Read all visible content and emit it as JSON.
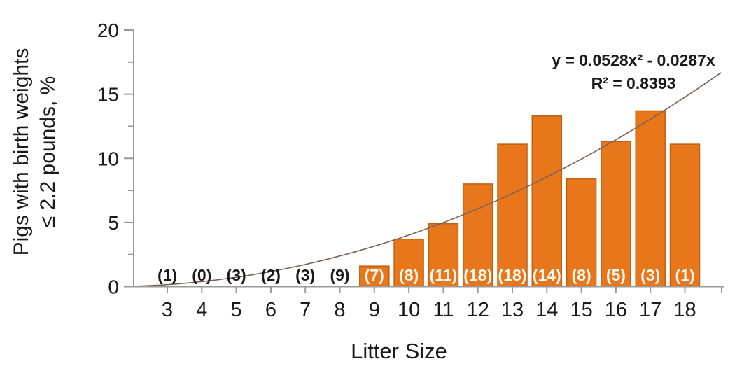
{
  "chart_data": {
    "type": "bar",
    "title": "",
    "xlabel": "Litter Size",
    "ylabel_line1": "Pigs with birth weights",
    "ylabel_line2": "≤ 2.2 pounds, %",
    "categories": [
      3,
      4,
      5,
      6,
      7,
      8,
      9,
      10,
      11,
      12,
      13,
      14,
      15,
      16,
      17,
      18
    ],
    "values": [
      0,
      0,
      0,
      0,
      0,
      0,
      1.6,
      3.7,
      4.9,
      8.0,
      11.1,
      13.3,
      8.4,
      11.3,
      13.7,
      11.1
    ],
    "counts": [
      1,
      0,
      3,
      2,
      3,
      9,
      7,
      8,
      11,
      18,
      18,
      14,
      8,
      5,
      3,
      1
    ],
    "count_labels": [
      "(1)",
      "(0)",
      "(3)",
      "(2)",
      "(3)",
      "(9)",
      "(7)",
      "(8)",
      "(11)",
      "(18)",
      "(18)",
      "(14)",
      "(8)",
      "(5)",
      "(3)",
      "(1)"
    ],
    "ylim": [
      0,
      20
    ],
    "yticks": [
      0,
      5,
      10,
      15,
      20
    ],
    "yticks_minor": [
      2.5,
      7.5,
      12.5,
      17.5
    ],
    "grid": false,
    "legend": "none",
    "trendline": {
      "equation_label": "y = 0.0528x² - 0.0287x",
      "r2_label": "R² = 0.8393",
      "a": 0.0528,
      "b": -0.0287,
      "fit_x_offset": -1,
      "draw_domain": [
        2.05,
        19.05
      ]
    },
    "colors": {
      "bar": "#E8771C",
      "bar_border": "#C06010",
      "trendline": "#7E6057",
      "axis": "#999999",
      "text": "#1A1A1A",
      "count_label_on_bar": "#FFF9F0"
    }
  }
}
